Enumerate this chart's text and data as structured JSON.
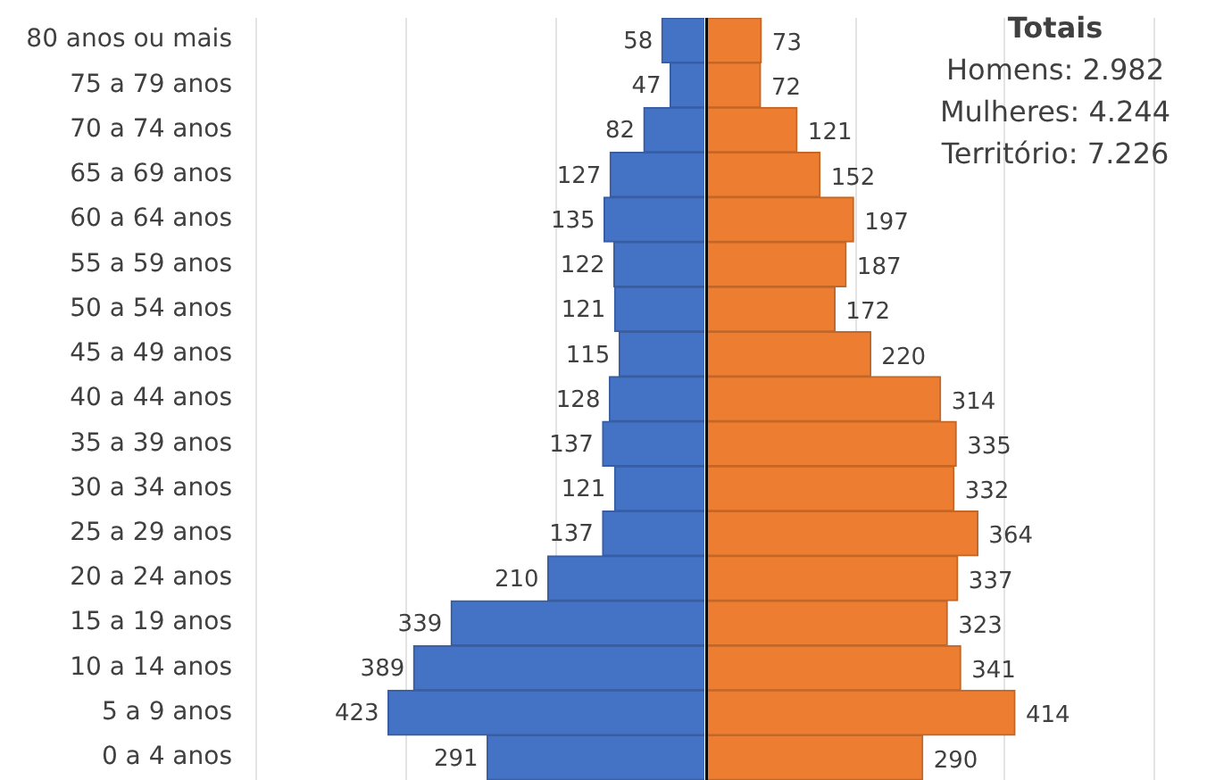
{
  "chart_data": [
    {
      "type": "bar",
      "orientation": "horizontal",
      "categories": [
        "80 anos ou mais",
        "75 a 79 anos",
        "70 a 74 anos",
        "65 a 69 anos",
        "60 a 64 anos",
        "55 a 59 anos",
        "50 a 54 anos",
        "45 a 49 anos",
        "40 a 44 anos",
        "35 a 39 anos",
        "30 a 34 anos",
        "25 a 29 anos",
        "20 a 24 anos",
        "15 a 19 anos",
        "10 a 14 anos",
        "5 a 9 anos",
        "0 a 4 anos"
      ],
      "series": [
        {
          "color": "#4472c4",
          "values": [
            58,
            47,
            82,
            127,
            135,
            122,
            121,
            115,
            128,
            137,
            121,
            137,
            210,
            339,
            389,
            423,
            291
          ]
        }
      ],
      "data_labels": true,
      "xlim": [
        600,
        0
      ],
      "xticks": [
        {
          "value": 400,
          "label": null
        },
        {
          "value": 200,
          "label": null
        },
        {
          "value": 0,
          "label": null
        }
      ],
      "tick_labels": "y",
      "grid": "x",
      "legend": false
    },
    {
      "type": "bar",
      "orientation": "horizontal",
      "categories": [
        null,
        null,
        null,
        null,
        null,
        null,
        null,
        null,
        null,
        null,
        null,
        null,
        null,
        null,
        null,
        null,
        null
      ],
      "series": [
        {
          "color": "#ed7d31",
          "values": [
            73,
            72,
            121,
            152,
            197,
            187,
            172,
            220,
            314,
            335,
            332,
            364,
            337,
            323,
            341,
            414,
            290
          ]
        }
      ],
      "data_labels": true,
      "xlim": [
        0,
        600
      ],
      "xticks": [
        {
          "value": 0,
          "label": null
        },
        {
          "value": 200,
          "label": null
        },
        {
          "value": 400,
          "label": null
        }
      ],
      "tick_labels": false,
      "grid": "x",
      "legend": false,
      "annotations": [
        "Totais",
        "Homens: 2.982",
        "Mulheres: 4.244",
        "Território: 7.226"
      ]
    }
  ]
}
